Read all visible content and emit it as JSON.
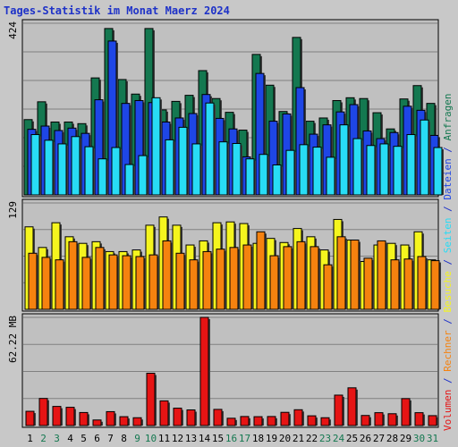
{
  "chart_data": {
    "type": "bar",
    "title": "Tages-Statistik im Monat Maerz 2024",
    "categories": [
      "1",
      "2",
      "3",
      "4",
      "5",
      "6",
      "7",
      "8",
      "9",
      "10",
      "11",
      "12",
      "13",
      "14",
      "15",
      "16",
      "17",
      "18",
      "19",
      "20",
      "21",
      "22",
      "23",
      "24",
      "25",
      "26",
      "27",
      "28",
      "29",
      "30",
      "31"
    ],
    "weekend_days": [
      "2",
      "3",
      "9",
      "10",
      "16",
      "17",
      "23",
      "24",
      "30",
      "31"
    ],
    "colors": {
      "anfragen": "#147850",
      "dateien": "#1e46e6",
      "seiten": "#28dcf5",
      "besuche": "#f5f51e",
      "rechner": "#f5820f",
      "volumen": "#e61414",
      "title": "#1e32c8",
      "weekday_label": "#000000",
      "weekend_label": "#147850",
      "panel_bg": "#c0c0c0",
      "grid": "#808080"
    },
    "panels": [
      {
        "axis_label": "424",
        "ymax": 424,
        "series_order": [
          "Anfragen",
          "Dateien",
          "Seiten"
        ],
        "series": [
          {
            "name": "Anfragen",
            "key": "anfragen",
            "values": [
              186,
              230,
              180,
              180,
              176,
              289,
              411,
              285,
              249,
              411,
              210,
              231,
              246,
              307,
              238,
              204,
              160,
              347,
              271,
              206,
              389,
              182,
              190,
              233,
              240,
              238,
              203,
              163,
              237,
              270,
              226
            ]
          },
          {
            "name": "Dateien",
            "key": "dateien",
            "values": [
              162,
              170,
              159,
              165,
              152,
              235,
              380,
              226,
              233,
              228,
              180,
              190,
              201,
              248,
              189,
              163,
              94,
              300,
              182,
              200,
              265,
              150,
              173,
              205,
              223,
              158,
              139,
              154,
              219,
              209,
              147
            ]
          },
          {
            "name": "Seiten",
            "key": "seiten",
            "values": [
              149,
              135,
              126,
              144,
              119,
              89,
              117,
              75,
              97,
              240,
              136,
              167,
              126,
              227,
              131,
              127,
              89,
              100,
              74,
              110,
              124,
              118,
              93,
              173,
              139,
              122,
              126,
              120,
              149,
              185,
              117
            ]
          }
        ]
      },
      {
        "axis_label": "129",
        "ymax": 129,
        "series_order": [
          "Besuche",
          "Rechner"
        ],
        "series": [
          {
            "name": "Besuche",
            "key": "besuche",
            "values": [
              100,
              75,
              105,
              88,
              80,
              82,
              70,
              70,
              72,
              102,
              112,
              102,
              78,
              83,
              105,
              106,
              104,
              80,
              86,
              81,
              98,
              88,
              72,
              109,
              84,
              58,
              78,
              80,
              78,
              94,
              60
            ]
          },
          {
            "name": "Rechner",
            "key": "rechner",
            "values": [
              68,
              63,
              60,
              82,
              63,
              75,
              66,
              65,
              64,
              66,
              83,
              68,
              60,
              70,
              73,
              75,
              78,
              94,
              65,
              76,
              82,
              76,
              54,
              88,
              84,
              62,
              83,
              60,
              61,
              64,
              59
            ]
          }
        ]
      },
      {
        "axis_label": "62.22 MB",
        "ymax": 62.22,
        "series_order": [
          "Volumen"
        ],
        "series": [
          {
            "name": "Volumen",
            "key": "volumen",
            "values": [
              8.2,
              15.6,
              11.0,
              10.5,
              7.5,
              3.2,
              8.0,
              5.1,
              4.5,
              30.1,
              14.2,
              10.0,
              9.0,
              62.22,
              9.3,
              4.2,
              5.2,
              5.1,
              5.2,
              7.6,
              9.1,
              5.6,
              4.5,
              17.5,
              21.7,
              5.8,
              7.4,
              6.8,
              15.5,
              7.4,
              5.7
            ]
          }
        ]
      }
    ],
    "right_legend": [
      {
        "text": "Volumen",
        "key": "volumen"
      },
      {
        "text": " / ",
        "key": "title"
      },
      {
        "text": "Rechner",
        "key": "rechner"
      },
      {
        "text": " / ",
        "key": "title"
      },
      {
        "text": "Besuche",
        "key": "besuche"
      },
      {
        "text": " / ",
        "key": "title"
      },
      {
        "text": "Seiten",
        "key": "seiten"
      },
      {
        "text": " / ",
        "key": "title"
      },
      {
        "text": "Dateien",
        "key": "dateien"
      },
      {
        "text": " / ",
        "key": "title"
      },
      {
        "text": "Anfragen",
        "key": "anfragen"
      }
    ]
  }
}
